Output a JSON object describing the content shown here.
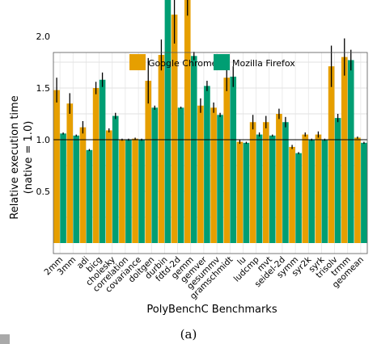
{
  "chart_data": {
    "type": "bar",
    "title": "",
    "xlabel": "PolyBenchC Benchmarks",
    "ylabel": "Relative execution time (native = 1.0)",
    "ylabel_lines": [
      "Relative execution time",
      "(native = 1.0)"
    ],
    "ylim": [
      0,
      3.65
    ],
    "yticks": [
      "0.5",
      "1.0",
      "1.5",
      "2.0",
      "2.5",
      "3.0",
      "3.5"
    ],
    "reference_line": 1.0,
    "grid": true,
    "legend_position": "top",
    "categories": [
      "2mm",
      "3mm",
      "adi",
      "bicg",
      "cholesky",
      "correlation",
      "covariance",
      "doitgen",
      "durbin",
      "fdtd-2d",
      "gemm",
      "gemver",
      "gesummv",
      "gramschmidt",
      "lu",
      "ludcmp",
      "mvt",
      "seidel-2d",
      "symm",
      "syr2k",
      "syrk",
      "trisolv",
      "trmm",
      "geomean"
    ],
    "series": [
      {
        "name": "Google Chrome",
        "color": "#e69f00",
        "values": [
          1.48,
          1.35,
          1.12,
          1.5,
          1.09,
          1.0,
          1.01,
          1.57,
          1.82,
          2.21,
          2.75,
          1.33,
          1.31,
          1.6,
          0.98,
          1.17,
          1.17,
          1.25,
          0.93,
          1.05,
          1.05,
          1.71,
          1.8,
          1.02
        ],
        "err": [
          0.12,
          0.1,
          0.06,
          0.06,
          0.02,
          0.01,
          0.01,
          0.22,
          0.15,
          0.28,
          0.55,
          0.07,
          0.05,
          0.13,
          0.02,
          0.07,
          0.06,
          0.05,
          0.02,
          0.02,
          0.03,
          0.2,
          0.18,
          0.01
        ]
      },
      {
        "name": "Mozilla Firefox",
        "color": "#009e73",
        "values": [
          1.06,
          1.04,
          0.9,
          1.58,
          1.23,
          1.0,
          1.0,
          1.31,
          2.9,
          1.31,
          1.81,
          1.52,
          1.24,
          1.61,
          0.97,
          1.05,
          1.04,
          1.17,
          0.87,
          1.0,
          1.0,
          1.21,
          1.77,
          0.97
        ]
      }
    ]
  },
  "caption": "(a)"
}
